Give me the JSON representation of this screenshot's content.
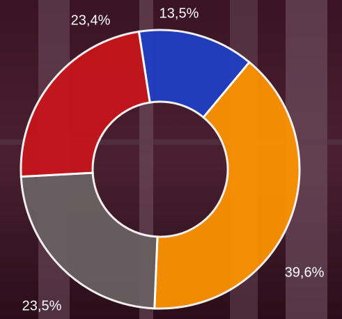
{
  "chart_data": {
    "type": "donut",
    "values": [
      13.5,
      39.6,
      23.5,
      23.4
    ],
    "value_labels": [
      "13,5%",
      "39,6%",
      "23,5%",
      "23,4%"
    ],
    "colors": [
      "#1f3fc6",
      "#ff9500",
      "#6a6163",
      "#c8151b"
    ]
  }
}
